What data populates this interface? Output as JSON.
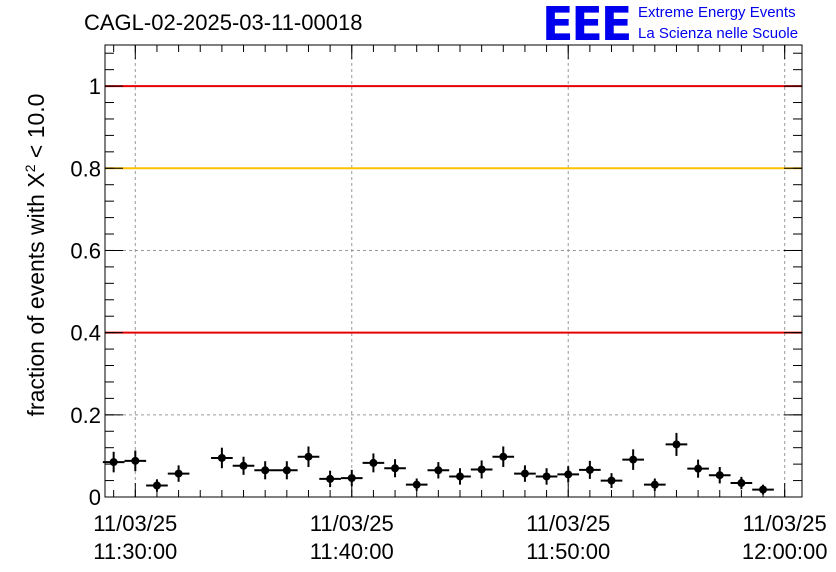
{
  "header": {
    "run_title": "CAGL-02-2025-03-11-00018",
    "logo_mark": "EEE",
    "logo_line1": "Extreme Energy Events",
    "logo_line2": "La Scienza nelle Scuole"
  },
  "colors": {
    "red_line": "#e60000",
    "yellow_line": "#ffc000",
    "logo_blue": "#0000ee",
    "marker": "#000000"
  },
  "chart_data": {
    "type": "scatter",
    "ylabel_prefix": "fraction of events with ",
    "ylabel_chi": "X",
    "ylabel_sup": "2",
    "ylabel_suffix": " < 10.0",
    "ylim": [
      0,
      1.1
    ],
    "yticks": [
      {
        "value": 0,
        "label": "0"
      },
      {
        "value": 0.2,
        "label": "0.2"
      },
      {
        "value": 0.4,
        "label": "0.4"
      },
      {
        "value": 0.6,
        "label": "0.6"
      },
      {
        "value": 0.8,
        "label": "0.8"
      },
      {
        "value": 1,
        "label": "1"
      }
    ],
    "xlim": [
      "11/03/25 11:28:36",
      "12:00:48"
    ],
    "xticks": [
      {
        "value": "11:30:00",
        "date": "11/03/25",
        "time": "11:30:00"
      },
      {
        "value": "11:40:00",
        "date": "11/03/25",
        "time": "11:40:00"
      },
      {
        "value": "11:50:00",
        "date": "11/03/25",
        "time": "11:50:00"
      },
      {
        "value": "12:00:00",
        "date": "11/03/25",
        "time": "12:00:00"
      }
    ],
    "grid": true,
    "reference_lines": [
      {
        "y": 1.0,
        "color": "red"
      },
      {
        "y": 0.8,
        "color": "yellow"
      },
      {
        "y": 0.4,
        "color": "red"
      }
    ],
    "points": [
      {
        "x": "11:29:00",
        "y": 0.085,
        "yerr": 0.025
      },
      {
        "x": "11:30:00",
        "y": 0.088,
        "yerr": 0.025
      },
      {
        "x": "11:31:00",
        "y": 0.028,
        "yerr": 0.015
      },
      {
        "x": "11:32:00",
        "y": 0.057,
        "yerr": 0.02
      },
      {
        "x": "11:34:00",
        "y": 0.095,
        "yerr": 0.025
      },
      {
        "x": "11:35:00",
        "y": 0.076,
        "yerr": 0.022
      },
      {
        "x": "11:36:00",
        "y": 0.065,
        "yerr": 0.022
      },
      {
        "x": "11:37:00",
        "y": 0.065,
        "yerr": 0.022
      },
      {
        "x": "11:38:00",
        "y": 0.098,
        "yerr": 0.025
      },
      {
        "x": "11:39:00",
        "y": 0.044,
        "yerr": 0.02
      },
      {
        "x": "11:40:00",
        "y": 0.046,
        "yerr": 0.02
      },
      {
        "x": "11:41:00",
        "y": 0.083,
        "yerr": 0.023
      },
      {
        "x": "11:42:00",
        "y": 0.07,
        "yerr": 0.022
      },
      {
        "x": "11:43:00",
        "y": 0.03,
        "yerr": 0.015
      },
      {
        "x": "11:44:00",
        "y": 0.065,
        "yerr": 0.02
      },
      {
        "x": "11:45:00",
        "y": 0.05,
        "yerr": 0.02
      },
      {
        "x": "11:46:00",
        "y": 0.067,
        "yerr": 0.022
      },
      {
        "x": "11:47:00",
        "y": 0.098,
        "yerr": 0.025
      },
      {
        "x": "11:48:00",
        "y": 0.057,
        "yerr": 0.02
      },
      {
        "x": "11:49:00",
        "y": 0.05,
        "yerr": 0.02
      },
      {
        "x": "11:50:00",
        "y": 0.055,
        "yerr": 0.02
      },
      {
        "x": "11:51:00",
        "y": 0.066,
        "yerr": 0.022
      },
      {
        "x": "11:52:00",
        "y": 0.04,
        "yerr": 0.018
      },
      {
        "x": "11:53:00",
        "y": 0.091,
        "yerr": 0.025
      },
      {
        "x": "11:54:00",
        "y": 0.03,
        "yerr": 0.015
      },
      {
        "x": "11:55:00",
        "y": 0.128,
        "yerr": 0.028
      },
      {
        "x": "11:56:00",
        "y": 0.069,
        "yerr": 0.022
      },
      {
        "x": "11:57:00",
        "y": 0.053,
        "yerr": 0.02
      },
      {
        "x": "11:58:00",
        "y": 0.034,
        "yerr": 0.015
      },
      {
        "x": "11:59:00",
        "y": 0.018,
        "yerr": 0.012
      }
    ]
  }
}
